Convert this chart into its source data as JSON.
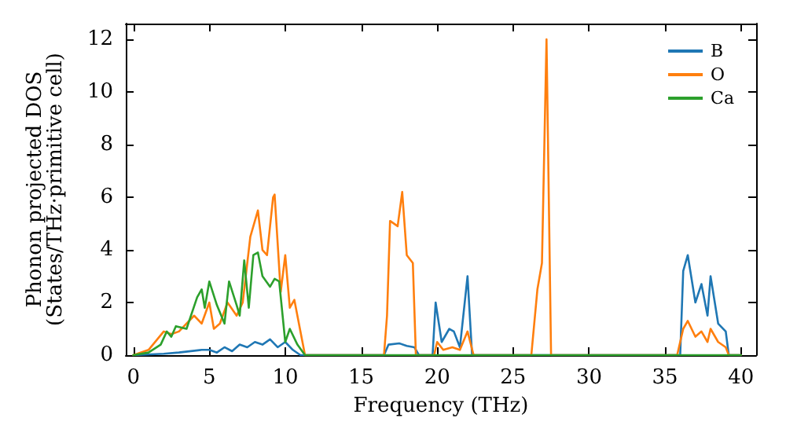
{
  "chart_data": {
    "type": "line",
    "xlabel": "Frequency (THz)",
    "ylabel": "Phonon projected DOS\n(States/THz·primitive cell)",
    "xlim": [
      -0.5,
      41
    ],
    "ylim": [
      0,
      12.6
    ],
    "xticks": [
      0,
      5,
      10,
      15,
      20,
      25,
      30,
      35,
      40
    ],
    "yticks": [
      0,
      2,
      4,
      6,
      8,
      10,
      12
    ],
    "grid": false,
    "legend": "top right",
    "marker": "none",
    "line_style": "solid",
    "series": [
      {
        "name": "B",
        "color": "#1f77b4",
        "x": [
          0,
          2,
          3,
          4.5,
          5,
          5.5,
          6,
          6.5,
          7,
          7.5,
          8,
          8.5,
          9,
          9.5,
          10,
          10.5,
          11,
          16.5,
          16.8,
          17.5,
          18,
          18.5,
          18.8,
          19.7,
          19.9,
          20.3,
          20.8,
          21.1,
          21.5,
          22,
          22.3,
          36,
          36.2,
          36.5,
          37,
          37.4,
          37.8,
          38,
          38.5,
          39,
          39.2,
          40
        ],
        "values": [
          0,
          0.05,
          0.1,
          0.2,
          0.2,
          0.1,
          0.3,
          0.15,
          0.4,
          0.3,
          0.5,
          0.4,
          0.6,
          0.3,
          0.5,
          0.2,
          0,
          0,
          0.4,
          0.45,
          0.35,
          0.3,
          0,
          0,
          2.0,
          0.5,
          1.0,
          0.9,
          0.3,
          3.0,
          0,
          0,
          3.2,
          3.8,
          2.0,
          2.7,
          1.5,
          3.0,
          1.2,
          0.9,
          0,
          0
        ]
      },
      {
        "name": "O",
        "color": "#ff7f0e",
        "x": [
          0,
          1,
          2,
          2.5,
          3,
          4,
          4.5,
          5,
          5.3,
          5.7,
          6.2,
          6.8,
          7.2,
          7.7,
          8.2,
          8.5,
          8.8,
          9.2,
          9.3,
          9.7,
          10,
          10.3,
          10.6,
          11.3,
          16.5,
          16.7,
          16.9,
          17.4,
          17.7,
          18,
          18.4,
          18.6,
          19.8,
          20,
          20.4,
          21,
          21.5,
          22,
          22.4,
          26.2,
          26.6,
          26.9,
          27.2,
          27.5,
          35.8,
          36.2,
          36.5,
          37,
          37.4,
          37.8,
          38,
          38.5,
          39,
          39.2,
          40
        ],
        "values": [
          0,
          0.2,
          0.9,
          0.8,
          0.9,
          1.5,
          1.2,
          2.0,
          1.0,
          1.2,
          2.0,
          1.5,
          2.0,
          4.5,
          5.5,
          4.0,
          3.8,
          6.0,
          6.1,
          2.4,
          3.8,
          1.8,
          2.1,
          0,
          0,
          1.5,
          5.1,
          4.9,
          6.2,
          3.8,
          3.5,
          0,
          0,
          0.5,
          0.2,
          0.3,
          0.2,
          0.9,
          0,
          0,
          2.5,
          3.5,
          12,
          0,
          0,
          1.0,
          1.3,
          0.7,
          0.9,
          0.5,
          1.0,
          0.5,
          0.3,
          0,
          0
        ]
      },
      {
        "name": "Ca",
        "color": "#2ca02c",
        "x": [
          0,
          1,
          1.8,
          2.2,
          2.5,
          2.8,
          3.5,
          4.2,
          4.5,
          4.7,
          5,
          5.5,
          6,
          6.3,
          6.8,
          7,
          7.3,
          7.6,
          7.9,
          8.2,
          8.5,
          9,
          9.3,
          9.6,
          10,
          10.3,
          10.8,
          11.3,
          40
        ],
        "values": [
          0,
          0.1,
          0.4,
          0.9,
          0.7,
          1.1,
          1.0,
          2.2,
          2.5,
          1.8,
          2.8,
          1.9,
          1.2,
          2.8,
          1.9,
          1.5,
          3.6,
          1.8,
          3.8,
          3.9,
          3.0,
          2.6,
          2.9,
          2.8,
          0.5,
          1.0,
          0.4,
          0,
          0
        ]
      }
    ]
  }
}
